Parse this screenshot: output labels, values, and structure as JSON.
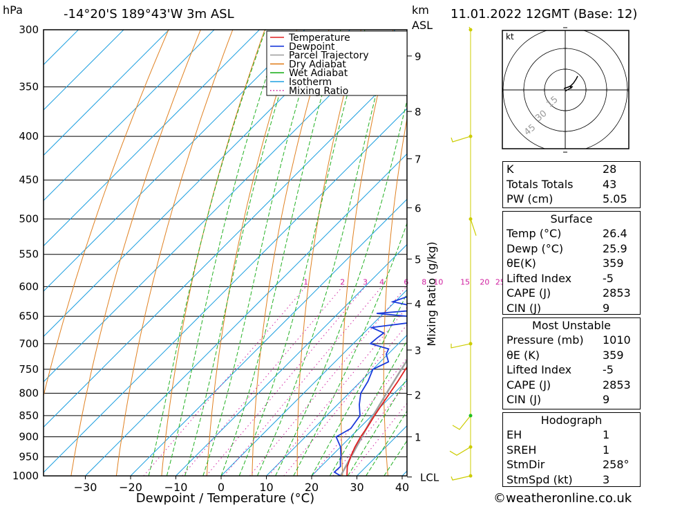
{
  "header": {
    "pressure_unit": "hPa",
    "location": "-14°20'S  189°43'W  3m  ASL",
    "height_unit": "km",
    "height_unit_sub": "ASL",
    "datetime": "11.01.2022  12GMT  (Base: 12)"
  },
  "colors": {
    "temperature": "#e02020",
    "dewpoint": "#1a3adb",
    "parcel": "#a0a0a0",
    "dry_adiabat": "#e08020",
    "wet_adiabat": "#22b022",
    "isotherm": "#1fa0e0",
    "mixing_ratio": "#d020a0",
    "wind_barb": "#cccc00"
  },
  "chart_data": {
    "type": "line",
    "title": "-14°20'S 189°43'W 3m ASL",
    "xlabel": "Dewpoint / Temperature (°C)",
    "ylabel": "hPa",
    "y2label": "Mixing Ratio (g/kg)",
    "xlim": [
      -40,
      40
    ],
    "ylim": [
      1000,
      300
    ],
    "x_ticks": [
      -30,
      -20,
      -10,
      0,
      10,
      20,
      30,
      40
    ],
    "y_ticks": [
      300,
      350,
      400,
      450,
      500,
      550,
      600,
      650,
      700,
      750,
      800,
      850,
      900,
      950,
      1000
    ],
    "km_ticks": [
      {
        "label": "9",
        "p": 322
      },
      {
        "label": "8",
        "p": 374
      },
      {
        "label": "7",
        "p": 425
      },
      {
        "label": "6",
        "p": 485
      },
      {
        "label": "5",
        "p": 557
      },
      {
        "label": "4",
        "p": 628
      },
      {
        "label": "3",
        "p": 712
      },
      {
        "label": "2",
        "p": 803
      },
      {
        "label": "1",
        "p": 900
      },
      {
        "label": "LCL",
        "p": 1003
      }
    ],
    "mixing_ratio_labels": [
      "1",
      "2",
      "3",
      "4",
      "6",
      "8",
      "10",
      "15",
      "20",
      "25"
    ],
    "legend": [
      "Temperature",
      "Dewpoint",
      "Parcel Trajectory",
      "Dry Adiabat",
      "Wet Adiabat",
      "Isotherm",
      "Mixing Ratio"
    ],
    "legend_position": "top-right",
    "series": [
      {
        "name": "Temperature",
        "points": [
          [
            1000,
            27.8
          ],
          [
            975,
            25.8
          ],
          [
            950,
            24.4
          ],
          [
            925,
            23.2
          ],
          [
            900,
            22.2
          ],
          [
            875,
            21.5
          ],
          [
            850,
            20.6
          ],
          [
            825,
            19.8
          ],
          [
            800,
            19.0
          ],
          [
            775,
            18.2
          ],
          [
            750,
            17.2
          ],
          [
            725,
            16.5
          ],
          [
            700,
            15.5
          ],
          [
            675,
            14.3
          ],
          [
            650,
            13.0
          ],
          [
            625,
            12.0
          ],
          [
            600,
            10.5
          ],
          [
            575,
            9.3
          ],
          [
            550,
            8.0
          ],
          [
            525,
            6.9
          ],
          [
            500,
            5.0
          ],
          [
            475,
            3.8
          ],
          [
            450,
            1.4
          ],
          [
            425,
            0.0
          ],
          [
            400,
            -3.0
          ],
          [
            375,
            -7.0
          ],
          [
            350,
            -10.5
          ],
          [
            300,
            -18.0
          ]
        ]
      },
      {
        "name": "Dewpoint",
        "points": [
          [
            1000,
            26.4
          ],
          [
            990,
            24.2
          ],
          [
            975,
            24.3
          ],
          [
            960,
            23.0
          ],
          [
            950,
            22.3
          ],
          [
            925,
            20.0
          ],
          [
            900,
            16.8
          ],
          [
            880,
            18.2
          ],
          [
            850,
            17.4
          ],
          [
            825,
            14.8
          ],
          [
            800,
            12.6
          ],
          [
            775,
            11.6
          ],
          [
            750,
            10.0
          ],
          [
            735,
            11.8
          ],
          [
            720,
            9.6
          ],
          [
            710,
            9.0
          ],
          [
            700,
            3.8
          ],
          [
            690,
            4.0
          ],
          [
            680,
            4.4
          ],
          [
            670,
            0.5
          ],
          [
            655,
            13.5
          ],
          [
            645,
            -1.5
          ],
          [
            638,
            8.8
          ],
          [
            625,
            -0.5
          ],
          [
            610,
            3.2
          ],
          [
            595,
            2.1
          ],
          [
            585,
            -0.5
          ],
          [
            575,
            -3.0
          ],
          [
            565,
            -0.6
          ],
          [
            550,
            -1.6
          ],
          [
            525,
            -3.5
          ],
          [
            505,
            -6.2
          ],
          [
            495,
            3.0
          ],
          [
            485,
            -2.5
          ],
          [
            475,
            -3.0
          ],
          [
            460,
            -2.5
          ],
          [
            450,
            -6.5
          ],
          [
            430,
            -7.5
          ],
          [
            415,
            -10.5
          ],
          [
            400,
            -13.0
          ],
          [
            385,
            -9.5
          ],
          [
            370,
            -17.0
          ],
          [
            345,
            -26.0
          ],
          [
            330,
            -20.5
          ],
          [
            310,
            -24.5
          ],
          [
            300,
            -19.0
          ]
        ]
      },
      {
        "name": "Parcel Trajectory",
        "points": [
          [
            1000,
            26.4
          ],
          [
            950,
            24.5
          ],
          [
            900,
            22.5
          ],
          [
            850,
            20.3
          ],
          [
            800,
            18.3
          ],
          [
            750,
            16.3
          ],
          [
            700,
            14.2
          ],
          [
            650,
            12.0
          ],
          [
            600,
            9.8
          ],
          [
            550,
            7.5
          ],
          [
            500,
            5.0
          ],
          [
            450,
            2.2
          ],
          [
            400,
            -1.5
          ],
          [
            380,
            -3.4
          ]
        ]
      }
    ]
  },
  "hodograph": {
    "unit": "kt",
    "ring_labels": [
      "15",
      "30",
      "45"
    ]
  },
  "indices": {
    "top": [
      {
        "label": "K",
        "value": "28"
      },
      {
        "label": "Totals Totals",
        "value": "43"
      },
      {
        "label": "PW (cm)",
        "value": "5.05"
      }
    ],
    "surface": {
      "title": "Surface",
      "rows": [
        {
          "label": "Temp (°C)",
          "value": "26.4"
        },
        {
          "label": "Dewp (°C)",
          "value": "25.9"
        },
        {
          "label": "θE(K)",
          "value": "359"
        },
        {
          "label": "Lifted Index",
          "value": "-5"
        },
        {
          "label": "CAPE (J)",
          "value": "2853"
        },
        {
          "label": "CIN (J)",
          "value": "9"
        }
      ]
    },
    "most_unstable": {
      "title": "Most Unstable",
      "rows": [
        {
          "label": "Pressure (mb)",
          "value": "1010"
        },
        {
          "label": "θE (K)",
          "value": "359"
        },
        {
          "label": "Lifted Index",
          "value": "-5"
        },
        {
          "label": "CAPE (J)",
          "value": "2853"
        },
        {
          "label": "CIN (J)",
          "value": "9"
        }
      ]
    },
    "hodograph": {
      "title": "Hodograph",
      "rows": [
        {
          "label": "EH",
          "value": "1"
        },
        {
          "label": "SREH",
          "value": "1"
        },
        {
          "label": "StmDir",
          "value": "258°"
        },
        {
          "label": "StmSpd (kt)",
          "value": "3"
        }
      ]
    }
  },
  "credit": "©weatheronline.co.uk"
}
